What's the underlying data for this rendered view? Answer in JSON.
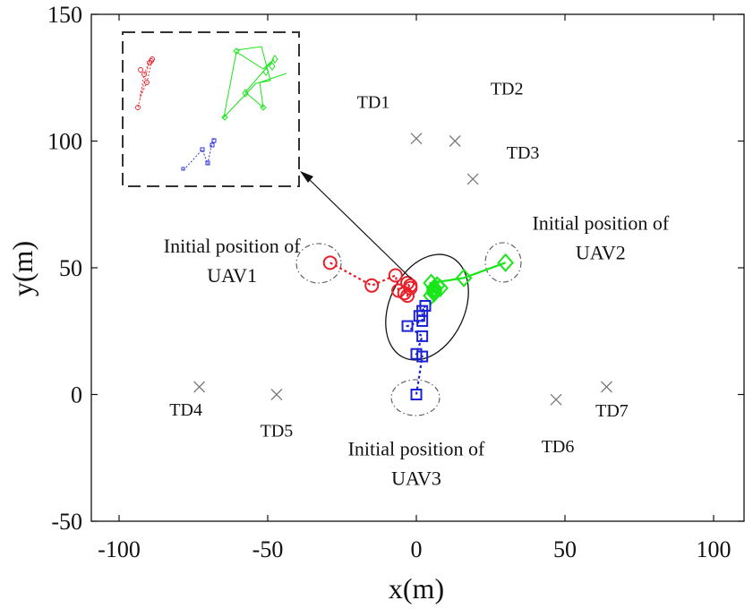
{
  "chart_data": {
    "type": "scatter",
    "xlabel": "x(m)",
    "ylabel": "y(m)",
    "xlim": [
      -100,
      100
    ],
    "ylim": [
      -50,
      150
    ],
    "xticks": [
      -100,
      -50,
      0,
      50,
      100
    ],
    "yticks": [
      -50,
      0,
      50,
      100,
      150
    ],
    "xtick_labels": [
      "-100",
      "-50",
      "0",
      "50",
      "100"
    ],
    "ytick_labels": [
      "-50",
      "0",
      "50",
      "100",
      "150"
    ],
    "grid": false,
    "colors": {
      "uav1": "#e8202a",
      "uav2": "#19e619",
      "uav3": "#1a22d6",
      "td": "#7a7a7a",
      "axis": "#111111"
    },
    "targets": [
      {
        "label": "TD1",
        "x": 0,
        "y": 101
      },
      {
        "label": "TD2",
        "x": 13,
        "y": 100
      },
      {
        "label": "TD3",
        "x": 19,
        "y": 85
      },
      {
        "label": "TD4",
        "x": -73,
        "y": 3
      },
      {
        "label": "TD5",
        "x": -47,
        "y": 0
      },
      {
        "label": "TD6",
        "x": 47,
        "y": -2
      },
      {
        "label": "TD7",
        "x": 64,
        "y": 3
      }
    ],
    "series": [
      {
        "name": "UAV1",
        "marker": "circle",
        "color": "#e8202a",
        "x": [
          -29,
          -15,
          -7,
          -6,
          -3,
          -2,
          -3,
          -4,
          -2
        ],
        "y": [
          52,
          43,
          47,
          41,
          44,
          42,
          39,
          40,
          43
        ]
      },
      {
        "name": "UAV2",
        "marker": "diamond",
        "color": "#19e619",
        "x": [
          30,
          16,
          5,
          8,
          6,
          7,
          6,
          5,
          6
        ],
        "y": [
          52,
          46,
          44,
          42,
          40,
          43,
          41,
          39,
          42
        ]
      },
      {
        "name": "UAV3",
        "marker": "square",
        "color": "#1a22d6",
        "x": [
          0,
          2,
          0,
          2,
          -3,
          2,
          2,
          3,
          1
        ],
        "y": [
          0,
          15,
          16,
          23,
          27,
          29,
          33,
          35,
          31
        ]
      }
    ],
    "annotations": [
      {
        "text": [
          "Initial position of",
          "UAV1"
        ],
        "x": -62,
        "y": 56
      },
      {
        "text": [
          "Initial position of",
          "UAV2"
        ],
        "x": 62,
        "y": 65
      },
      {
        "text": [
          "Initial position of",
          "UAV3"
        ],
        "x": 0,
        "y": -24
      }
    ]
  }
}
